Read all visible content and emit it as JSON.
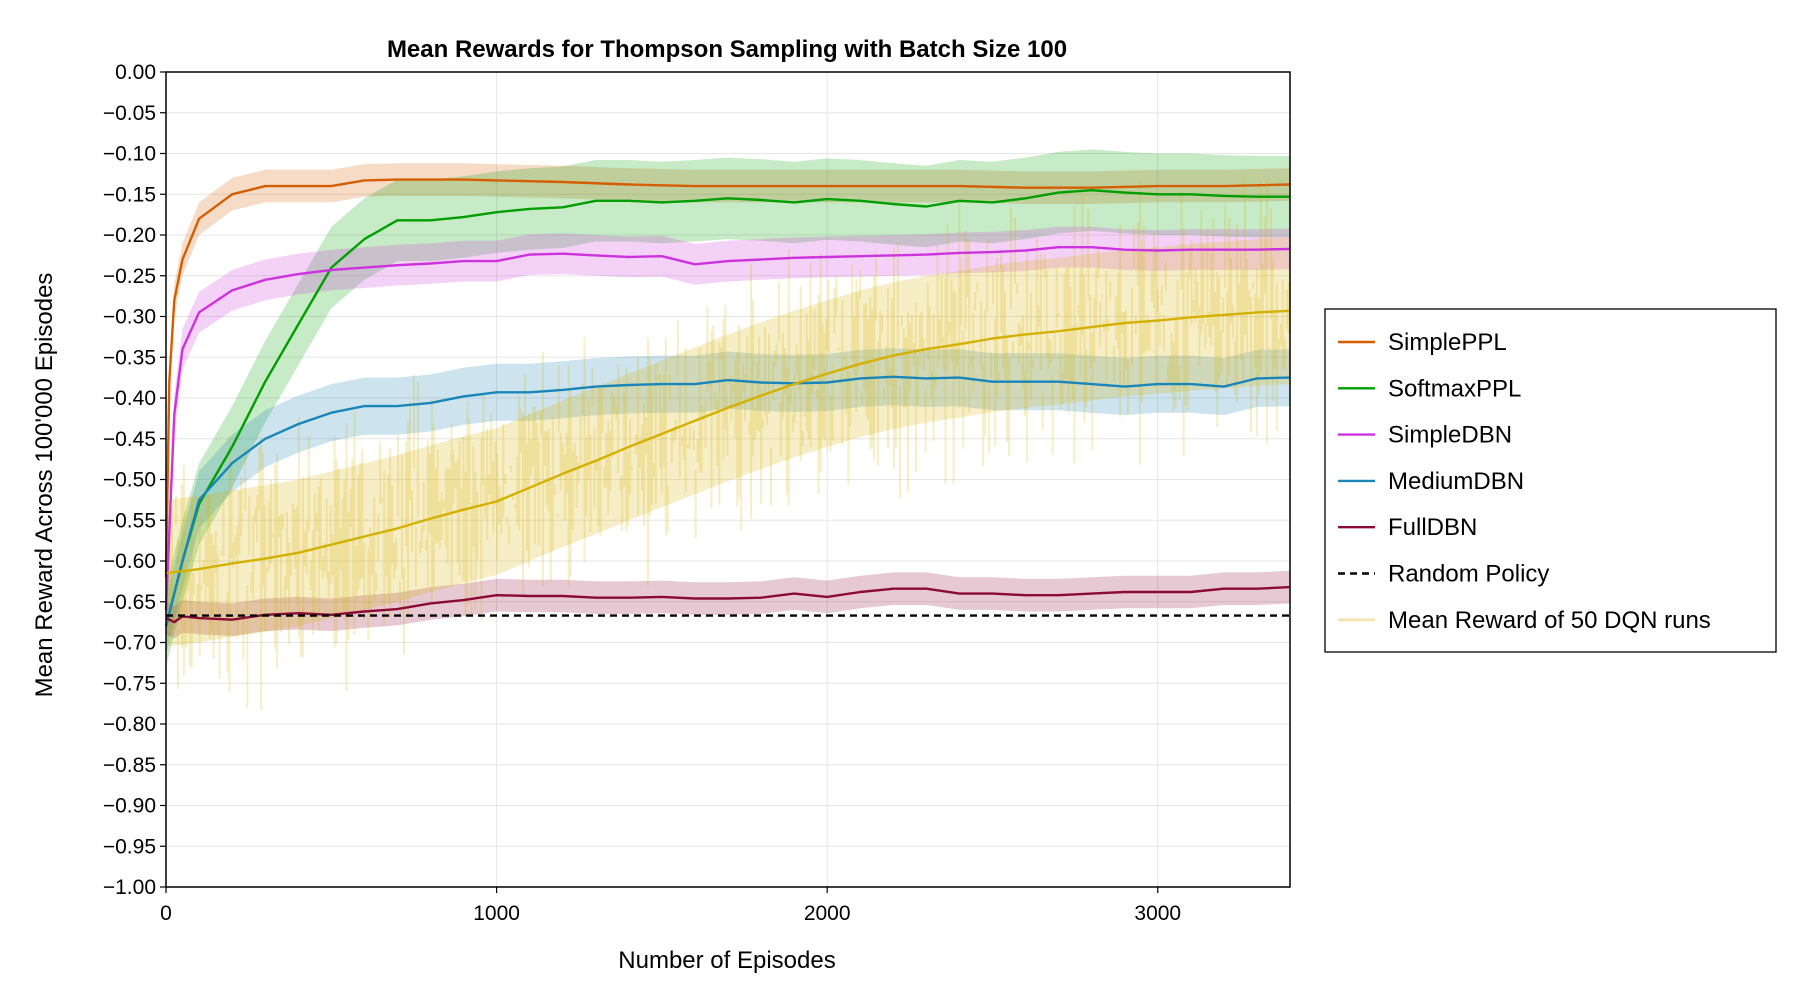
{
  "chart_data": {
    "type": "line",
    "title": "Mean Rewards for Thompson Sampling with Batch Size 100",
    "xlabel": "Number of Episodes",
    "ylabel": "Mean Reward Across 100'000 Episodes",
    "xlim": [
      0,
      3400
    ],
    "ylim": [
      -1.0,
      0.0
    ],
    "xticks": [
      0,
      1000,
      2000,
      3000
    ],
    "yticks": [
      0.0,
      -0.05,
      -0.1,
      -0.15,
      -0.2,
      -0.25,
      -0.3,
      -0.35,
      -0.4,
      -0.45,
      -0.5,
      -0.55,
      -0.6,
      -0.65,
      -0.7,
      -0.75,
      -0.8,
      -0.85,
      -0.9,
      -0.95,
      -1.0
    ],
    "ytick_labels": [
      "0.00",
      "−0.05",
      "−0.10",
      "−0.15",
      "−0.20",
      "−0.25",
      "−0.30",
      "−0.35",
      "−0.40",
      "−0.45",
      "−0.50",
      "−0.55",
      "−0.60",
      "−0.65",
      "−0.70",
      "−0.75",
      "−0.80",
      "−0.85",
      "−0.90",
      "−0.95",
      "−1.00"
    ],
    "grid": true,
    "legend_position": "right",
    "series": [
      {
        "name": "SimplePPL",
        "color": "#d55e00",
        "band_width": 0.02,
        "x": [
          0,
          10,
          25,
          50,
          100,
          200,
          300,
          400,
          500,
          600,
          700,
          800,
          900,
          1000,
          1200,
          1400,
          1600,
          1800,
          2000,
          2200,
          2400,
          2600,
          2800,
          3000,
          3200,
          3400
        ],
        "y": [
          -0.62,
          -0.38,
          -0.28,
          -0.23,
          -0.18,
          -0.15,
          -0.14,
          -0.14,
          -0.14,
          -0.133,
          -0.132,
          -0.132,
          -0.132,
          -0.133,
          -0.135,
          -0.138,
          -0.14,
          -0.14,
          -0.14,
          -0.14,
          -0.14,
          -0.142,
          -0.142,
          -0.14,
          -0.14,
          -0.138
        ]
      },
      {
        "name": "SoftmaxPPL",
        "color": "#009e00",
        "band_width": 0.05,
        "x": [
          0,
          50,
          100,
          200,
          300,
          400,
          500,
          600,
          700,
          800,
          900,
          1000,
          1100,
          1200,
          1300,
          1400,
          1500,
          1600,
          1700,
          1800,
          1900,
          2000,
          2100,
          2200,
          2300,
          2400,
          2500,
          2600,
          2700,
          2800,
          2900,
          3000,
          3100,
          3200,
          3300,
          3400
        ],
        "y": [
          -0.68,
          -0.6,
          -0.53,
          -0.46,
          -0.38,
          -0.31,
          -0.24,
          -0.205,
          -0.182,
          -0.182,
          -0.178,
          -0.172,
          -0.168,
          -0.166,
          -0.158,
          -0.158,
          -0.16,
          -0.158,
          -0.155,
          -0.157,
          -0.16,
          -0.156,
          -0.158,
          -0.162,
          -0.165,
          -0.158,
          -0.16,
          -0.155,
          -0.148,
          -0.145,
          -0.148,
          -0.15,
          -0.15,
          -0.152,
          -0.153,
          -0.153
        ]
      },
      {
        "name": "SimpleDBN",
        "color": "#cc33dd",
        "band_width": 0.025,
        "x": [
          0,
          25,
          50,
          100,
          200,
          300,
          400,
          500,
          600,
          700,
          800,
          900,
          1000,
          1100,
          1200,
          1300,
          1400,
          1500,
          1600,
          1700,
          1800,
          1900,
          2000,
          2100,
          2200,
          2300,
          2400,
          2500,
          2600,
          2700,
          2800,
          2900,
          3000,
          3100,
          3200,
          3300,
          3400
        ],
        "y": [
          -0.66,
          -0.42,
          -0.34,
          -0.295,
          -0.268,
          -0.255,
          -0.248,
          -0.243,
          -0.24,
          -0.237,
          -0.235,
          -0.232,
          -0.232,
          -0.224,
          -0.223,
          -0.225,
          -0.227,
          -0.226,
          -0.236,
          -0.232,
          -0.23,
          -0.228,
          -0.227,
          -0.226,
          -0.225,
          -0.224,
          -0.222,
          -0.221,
          -0.219,
          -0.215,
          -0.215,
          -0.218,
          -0.219,
          -0.218,
          -0.218,
          -0.218,
          -0.217
        ]
      },
      {
        "name": "MediumDBN",
        "color": "#1a85b8",
        "band_width": 0.035,
        "x": [
          0,
          50,
          100,
          200,
          300,
          400,
          500,
          600,
          700,
          800,
          900,
          1000,
          1100,
          1200,
          1300,
          1400,
          1500,
          1600,
          1700,
          1800,
          1900,
          2000,
          2100,
          2200,
          2300,
          2400,
          2500,
          2600,
          2700,
          2800,
          2900,
          3000,
          3100,
          3200,
          3300,
          3400
        ],
        "y": [
          -0.68,
          -0.6,
          -0.525,
          -0.48,
          -0.45,
          -0.432,
          -0.418,
          -0.41,
          -0.41,
          -0.406,
          -0.398,
          -0.393,
          -0.393,
          -0.39,
          -0.386,
          -0.384,
          -0.383,
          -0.383,
          -0.378,
          -0.381,
          -0.382,
          -0.381,
          -0.376,
          -0.374,
          -0.376,
          -0.375,
          -0.38,
          -0.38,
          -0.38,
          -0.383,
          -0.386,
          -0.383,
          -0.383,
          -0.386,
          -0.376,
          -0.375
        ]
      },
      {
        "name": "FullDBN",
        "color": "#8b0a36",
        "band_width": 0.02,
        "x": [
          0,
          25,
          50,
          100,
          200,
          300,
          400,
          500,
          600,
          700,
          800,
          900,
          1000,
          1100,
          1200,
          1300,
          1400,
          1500,
          1600,
          1700,
          1800,
          1900,
          2000,
          2100,
          2200,
          2300,
          2400,
          2500,
          2600,
          2700,
          2800,
          2900,
          3000,
          3100,
          3200,
          3300,
          3400
        ],
        "y": [
          -0.67,
          -0.675,
          -0.668,
          -0.67,
          -0.672,
          -0.666,
          -0.664,
          -0.666,
          -0.662,
          -0.659,
          -0.652,
          -0.648,
          -0.642,
          -0.643,
          -0.643,
          -0.645,
          -0.645,
          -0.644,
          -0.646,
          -0.646,
          -0.645,
          -0.64,
          -0.644,
          -0.638,
          -0.634,
          -0.634,
          -0.64,
          -0.64,
          -0.642,
          -0.642,
          -0.64,
          -0.638,
          -0.638,
          -0.638,
          -0.634,
          -0.634,
          -0.632
        ]
      },
      {
        "name": "Random Policy",
        "color": "#000000",
        "dashed": true,
        "x": [
          0,
          3400
        ],
        "y": [
          -0.667,
          -0.667
        ]
      },
      {
        "name": "Mean Reward of 50 DQN runs",
        "color": "#d4b000",
        "band_width": 0.09,
        "x": [
          0,
          100,
          200,
          300,
          400,
          500,
          600,
          700,
          800,
          900,
          1000,
          1100,
          1200,
          1300,
          1400,
          1500,
          1600,
          1700,
          1800,
          1900,
          2000,
          2100,
          2200,
          2300,
          2400,
          2500,
          2600,
          2700,
          2800,
          2900,
          3000,
          3100,
          3200,
          3300,
          3400
        ],
        "y": [
          -0.615,
          -0.61,
          -0.603,
          -0.597,
          -0.59,
          -0.58,
          -0.57,
          -0.56,
          -0.548,
          -0.537,
          -0.527,
          -0.51,
          -0.493,
          -0.477,
          -0.46,
          -0.444,
          -0.428,
          -0.412,
          -0.397,
          -0.383,
          -0.37,
          -0.358,
          -0.348,
          -0.34,
          -0.334,
          -0.327,
          -0.322,
          -0.318,
          -0.313,
          -0.308,
          -0.305,
          -0.301,
          -0.298,
          -0.295,
          -0.293
        ]
      }
    ]
  }
}
